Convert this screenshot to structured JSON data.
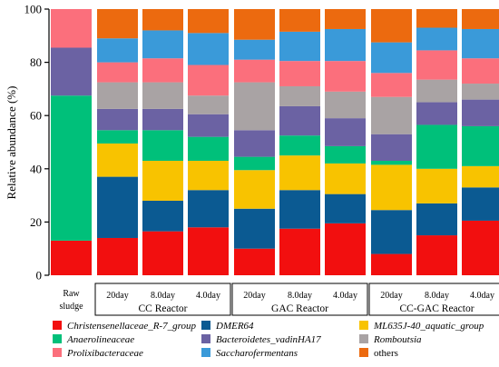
{
  "chart_data": {
    "type": "bar",
    "stacked": true,
    "ylabel": "Relative abundance (%)",
    "ylim": [
      0,
      100
    ],
    "yticks": [
      "0",
      "20",
      "40",
      "60",
      "80",
      "100"
    ],
    "bars": [
      {
        "label": "Raw sludge",
        "group": ""
      },
      {
        "label": "20day",
        "group": "CC Reactor"
      },
      {
        "label": "8.0day",
        "group": "CC Reactor"
      },
      {
        "label": "4.0day",
        "group": "CC Reactor"
      },
      {
        "label": "20day",
        "group": "GAC Reactor"
      },
      {
        "label": "8.0day",
        "group": "GAC Reactor"
      },
      {
        "label": "4.0day",
        "group": "GAC Reactor"
      },
      {
        "label": "20day",
        "group": "CC-GAC Reactor"
      },
      {
        "label": "8.0day",
        "group": "CC-GAC Reactor"
      },
      {
        "label": "4.0day",
        "group": "CC-GAC Reactor"
      }
    ],
    "groups": [
      {
        "name": "CC Reactor",
        "first": 1,
        "last": 3
      },
      {
        "name": "GAC Reactor",
        "first": 4,
        "last": 6
      },
      {
        "name": "CC-GAC Reactor",
        "first": 7,
        "last": 9
      }
    ],
    "raw_label": {
      "line1": "Raw",
      "line2": "sludge"
    },
    "series": [
      {
        "name": "Christensenellaceae_R-7_group",
        "color": "#f20f0f",
        "italic": true,
        "values": [
          13,
          14,
          16.5,
          18,
          10,
          17.5,
          19.5,
          8,
          15,
          20.5
        ]
      },
      {
        "name": "DMER64",
        "color": "#0b5a92",
        "italic": true,
        "values": [
          0,
          23,
          11.5,
          14,
          15,
          14.5,
          11,
          16.5,
          12,
          12.5
        ]
      },
      {
        "name": "ML635J-40_aquatic_group",
        "color": "#f8c300",
        "italic": true,
        "values": [
          0,
          12.5,
          15,
          11,
          14.5,
          13,
          11.5,
          17,
          13,
          8
        ]
      },
      {
        "name": "Anaerolineaceae",
        "color": "#00c07a",
        "italic": true,
        "values": [
          54.5,
          5,
          11.5,
          9,
          5,
          7.5,
          6.5,
          1.5,
          16.5,
          15
        ]
      },
      {
        "name": "Bacteroidetes_vadinHA17",
        "color": "#6b62a3",
        "italic": true,
        "values": [
          18,
          8,
          8,
          8.5,
          10,
          11,
          10.5,
          10,
          8.5,
          10
        ]
      },
      {
        "name": "Romboutsia",
        "color": "#a9a3a4",
        "italic": true,
        "values": [
          0,
          10,
          10,
          7,
          18,
          7.5,
          10,
          14,
          8.5,
          6
        ]
      },
      {
        "name": "Prolixibacteraceae",
        "color": "#fb6f7c",
        "italic": true,
        "values": [
          14.5,
          7.5,
          9,
          11.5,
          8.5,
          9.5,
          11.5,
          9,
          11,
          9.5
        ]
      },
      {
        "name": "Saccharofermentans",
        "color": "#3a9ad9",
        "italic": true,
        "values": [
          0,
          9,
          10.5,
          12,
          7.5,
          11,
          12,
          11.5,
          8.5,
          11
        ]
      },
      {
        "name": "others",
        "color": "#ec6a0f",
        "italic": false,
        "values": [
          0,
          11,
          8,
          9,
          11.5,
          8.5,
          7.5,
          12.5,
          7,
          7.5
        ]
      }
    ],
    "legend_order": [
      0,
      3,
      6,
      1,
      4,
      7,
      2,
      5,
      8
    ],
    "grid": false,
    "legend_position": "bottom"
  }
}
